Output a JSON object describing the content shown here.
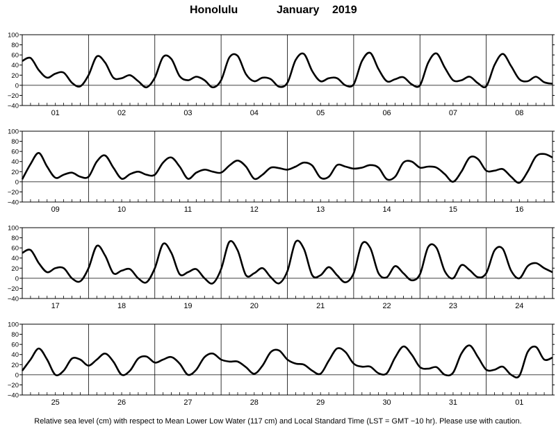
{
  "title": {
    "station": "Honolulu",
    "month": "January",
    "year": "2019"
  },
  "footnote": "Relative sea level (cm) with respect to Mean Lower Low Water (117 cm) and Local Standard Time (LST = GMT −10 hr). Please use with caution.",
  "chart_data": [
    {
      "type": "line",
      "ylim": [
        -40,
        100
      ],
      "yticks": [
        "−40",
        "−20",
        "0",
        "20",
        "40",
        "60",
        "80",
        "100"
      ],
      "day_labels": [
        "01",
        "02",
        "03",
        "04",
        "05",
        "06",
        "07",
        "08"
      ],
      "x": [
        0,
        3,
        6,
        9,
        12,
        15,
        18,
        21,
        24,
        27,
        30,
        33,
        36,
        39,
        42,
        45,
        48,
        51,
        54,
        57,
        60,
        63,
        66,
        69,
        72,
        75,
        78,
        81,
        84,
        87,
        90,
        93,
        96,
        99,
        102,
        105,
        108,
        111,
        114,
        117,
        120,
        123,
        126,
        129,
        132,
        135,
        138,
        141,
        144,
        147,
        150,
        153,
        156,
        159,
        162,
        165,
        168,
        171,
        174,
        177,
        180,
        183,
        186,
        189,
        192
      ],
      "series": [
        {
          "values": [
            48,
            54,
            30,
            15,
            23,
            25,
            5,
            -2,
            20,
            57,
            45,
            15,
            14,
            20,
            8,
            -4,
            15,
            56,
            52,
            18,
            10,
            17,
            10,
            -4,
            10,
            55,
            58,
            22,
            8,
            15,
            12,
            -3,
            5,
            50,
            62,
            28,
            8,
            14,
            14,
            0,
            2,
            48,
            64,
            32,
            8,
            12,
            16,
            2,
            0,
            45,
            63,
            35,
            10,
            10,
            17,
            4,
            -2,
            40,
            62,
            38,
            12,
            8,
            17,
            6,
            3
          ]
        }
      ]
    },
    {
      "type": "line",
      "ylim": [
        -40,
        100
      ],
      "yticks": [
        "−40",
        "−20",
        "0",
        "20",
        "40",
        "60",
        "80",
        "100"
      ],
      "day_labels": [
        "09",
        "10",
        "11",
        "12",
        "13",
        "14",
        "15",
        "16"
      ],
      "x": [
        0,
        3,
        6,
        9,
        12,
        15,
        18,
        21,
        24,
        27,
        30,
        33,
        36,
        39,
        42,
        45,
        48,
        51,
        54,
        57,
        60,
        63,
        66,
        69,
        72,
        75,
        78,
        81,
        84,
        87,
        90,
        93,
        96,
        99,
        102,
        105,
        108,
        111,
        114,
        117,
        120,
        123,
        126,
        129,
        132,
        135,
        138,
        141,
        144,
        147,
        150,
        153,
        156,
        159,
        162,
        165,
        168,
        171,
        174,
        177,
        180,
        183,
        186,
        189,
        192
      ],
      "series": [
        {
          "values": [
            5,
            35,
            57,
            30,
            8,
            14,
            18,
            10,
            10,
            40,
            52,
            28,
            6,
            15,
            20,
            14,
            14,
            38,
            48,
            30,
            6,
            18,
            24,
            20,
            18,
            32,
            42,
            30,
            6,
            14,
            28,
            27,
            24,
            30,
            38,
            32,
            8,
            10,
            33,
            30,
            26,
            28,
            33,
            28,
            5,
            10,
            38,
            40,
            28,
            30,
            28,
            15,
            0,
            20,
            48,
            45,
            22,
            22,
            25,
            10,
            -2,
            20,
            50,
            55,
            48
          ]
        }
      ]
    },
    {
      "type": "line",
      "ylim": [
        -40,
        100
      ],
      "yticks": [
        "−40",
        "−20",
        "0",
        "20",
        "40",
        "60",
        "80",
        "100"
      ],
      "day_labels": [
        "17",
        "18",
        "19",
        "20",
        "21",
        "22",
        "23",
        "24"
      ],
      "x": [
        0,
        3,
        6,
        9,
        12,
        15,
        18,
        21,
        24,
        27,
        30,
        33,
        36,
        39,
        42,
        45,
        48,
        51,
        54,
        57,
        60,
        63,
        66,
        69,
        72,
        75,
        78,
        81,
        84,
        87,
        90,
        93,
        96,
        99,
        102,
        105,
        108,
        111,
        114,
        117,
        120,
        123,
        126,
        129,
        132,
        135,
        138,
        141,
        144,
        147,
        150,
        153,
        156,
        159,
        162,
        165,
        168,
        171,
        174,
        177,
        180,
        183,
        186,
        189,
        192
      ],
      "series": [
        {
          "values": [
            50,
            56,
            30,
            12,
            20,
            20,
            0,
            -6,
            20,
            64,
            45,
            10,
            15,
            18,
            0,
            -8,
            20,
            68,
            50,
            8,
            12,
            18,
            0,
            -10,
            18,
            72,
            55,
            6,
            10,
            20,
            2,
            -10,
            14,
            72,
            58,
            6,
            6,
            22,
            6,
            -8,
            10,
            68,
            60,
            10,
            2,
            24,
            10,
            -4,
            8,
            62,
            60,
            14,
            0,
            26,
            16,
            2,
            10,
            55,
            58,
            15,
            0,
            24,
            30,
            20,
            12
          ]
        }
      ]
    },
    {
      "type": "line",
      "ylim": [
        -40,
        100
      ],
      "yticks": [
        "−40",
        "−20",
        "0",
        "20",
        "40",
        "60",
        "80",
        "100"
      ],
      "day_labels": [
        "25",
        "26",
        "27",
        "28",
        "29",
        "30",
        "31",
        "01"
      ],
      "x": [
        0,
        3,
        6,
        9,
        12,
        15,
        18,
        21,
        24,
        27,
        30,
        33,
        36,
        39,
        42,
        45,
        48,
        51,
        54,
        57,
        60,
        63,
        66,
        69,
        72,
        75,
        78,
        81,
        84,
        87,
        90,
        93,
        96,
        99,
        102,
        105,
        108,
        111,
        114,
        117,
        120,
        123,
        126,
        129,
        132,
        135,
        138,
        141,
        144,
        147,
        150,
        153,
        156,
        159,
        162,
        165,
        168,
        171,
        174,
        177,
        180,
        183,
        186,
        189,
        192
      ],
      "series": [
        {
          "values": [
            8,
            30,
            52,
            30,
            0,
            8,
            32,
            30,
            18,
            30,
            42,
            26,
            0,
            8,
            32,
            36,
            24,
            30,
            35,
            22,
            0,
            10,
            35,
            42,
            30,
            26,
            26,
            15,
            2,
            18,
            45,
            48,
            30,
            22,
            20,
            8,
            2,
            28,
            52,
            45,
            22,
            16,
            16,
            3,
            3,
            34,
            56,
            40,
            15,
            12,
            15,
            0,
            4,
            42,
            58,
            35,
            10,
            10,
            16,
            0,
            -2,
            45,
            55,
            30,
            34
          ]
        }
      ]
    }
  ]
}
